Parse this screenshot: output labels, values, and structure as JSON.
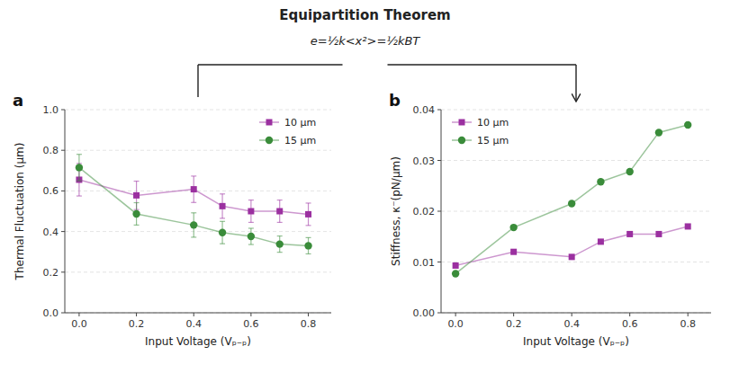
{
  "title": "Equipartition Theorem",
  "subtitle": "e=½k<x²>=½kBT",
  "chart_data": [
    {
      "type": "line",
      "title": "a",
      "x": [
        0.0,
        0.2,
        0.4,
        0.5,
        0.6,
        0.7,
        0.8
      ],
      "series": [
        {
          "name": "10 μm",
          "color": "#9B30A0",
          "marker": "square",
          "line_style": "solid",
          "values": [
            0.655,
            0.578,
            0.608,
            0.525,
            0.5,
            0.5,
            0.485
          ],
          "yerr": [
            0.08,
            0.07,
            0.065,
            0.06,
            0.055,
            0.055,
            0.055
          ]
        },
        {
          "name": "15 μm",
          "color": "#3A8C3A",
          "marker": "circle",
          "line_style": "solid",
          "values": [
            0.715,
            0.487,
            0.432,
            0.395,
            0.376,
            0.338,
            0.33
          ],
          "yerr": [
            0.065,
            0.055,
            0.06,
            0.055,
            0.04,
            0.04,
            0.04
          ]
        }
      ],
      "xlabel": "Input Voltage (Vₚ₋ₚ)",
      "ylabel": "Thermal Fluctuation (μm)",
      "xlim": [
        -0.05,
        0.88
      ],
      "xticks": [
        {
          "value": 0.0,
          "label": "0.0"
        },
        0.2,
        0.4,
        0.6,
        0.8
      ],
      "ylim": [
        0.0,
        1.0
      ],
      "yticks": [
        {
          "value": 0.0,
          "label": "0.0"
        },
        0.2,
        0.4,
        0.6,
        0.8,
        {
          "value": 1.0,
          "label": "1.0"
        }
      ],
      "grid": true,
      "legend": "upper right"
    },
    {
      "type": "line",
      "title": "b",
      "x": [
        0.0,
        0.2,
        0.4,
        0.5,
        0.6,
        0.7,
        0.8
      ],
      "series": [
        {
          "name": "10 μm",
          "color": "#9B30A0",
          "marker": "square",
          "line_style": "solid",
          "values": [
            0.0093,
            0.012,
            0.011,
            0.014,
            0.0155,
            0.0155,
            0.017
          ]
        },
        {
          "name": "15 μm",
          "color": "#3A8C3A",
          "marker": "circle",
          "line_style": "solid",
          "values": [
            0.0077,
            0.0168,
            0.0215,
            0.0258,
            0.0278,
            0.0355,
            0.037
          ]
        }
      ],
      "xlabel": "Input Voltage (Vₚ₋ₚ)",
      "ylabel": "Stiffness, κ⁻(pN/μm)",
      "xlim": [
        -0.05,
        0.88
      ],
      "xticks": [
        {
          "value": 0.0,
          "label": "0.0"
        },
        0.2,
        0.4,
        0.6,
        0.8
      ],
      "ylim": [
        0.0,
        0.04
      ],
      "yticks": [
        {
          "value": 0.0,
          "label": "0.00"
        },
        0.01,
        0.02,
        0.03,
        0.04
      ],
      "grid": true,
      "legend": "upper left"
    }
  ]
}
